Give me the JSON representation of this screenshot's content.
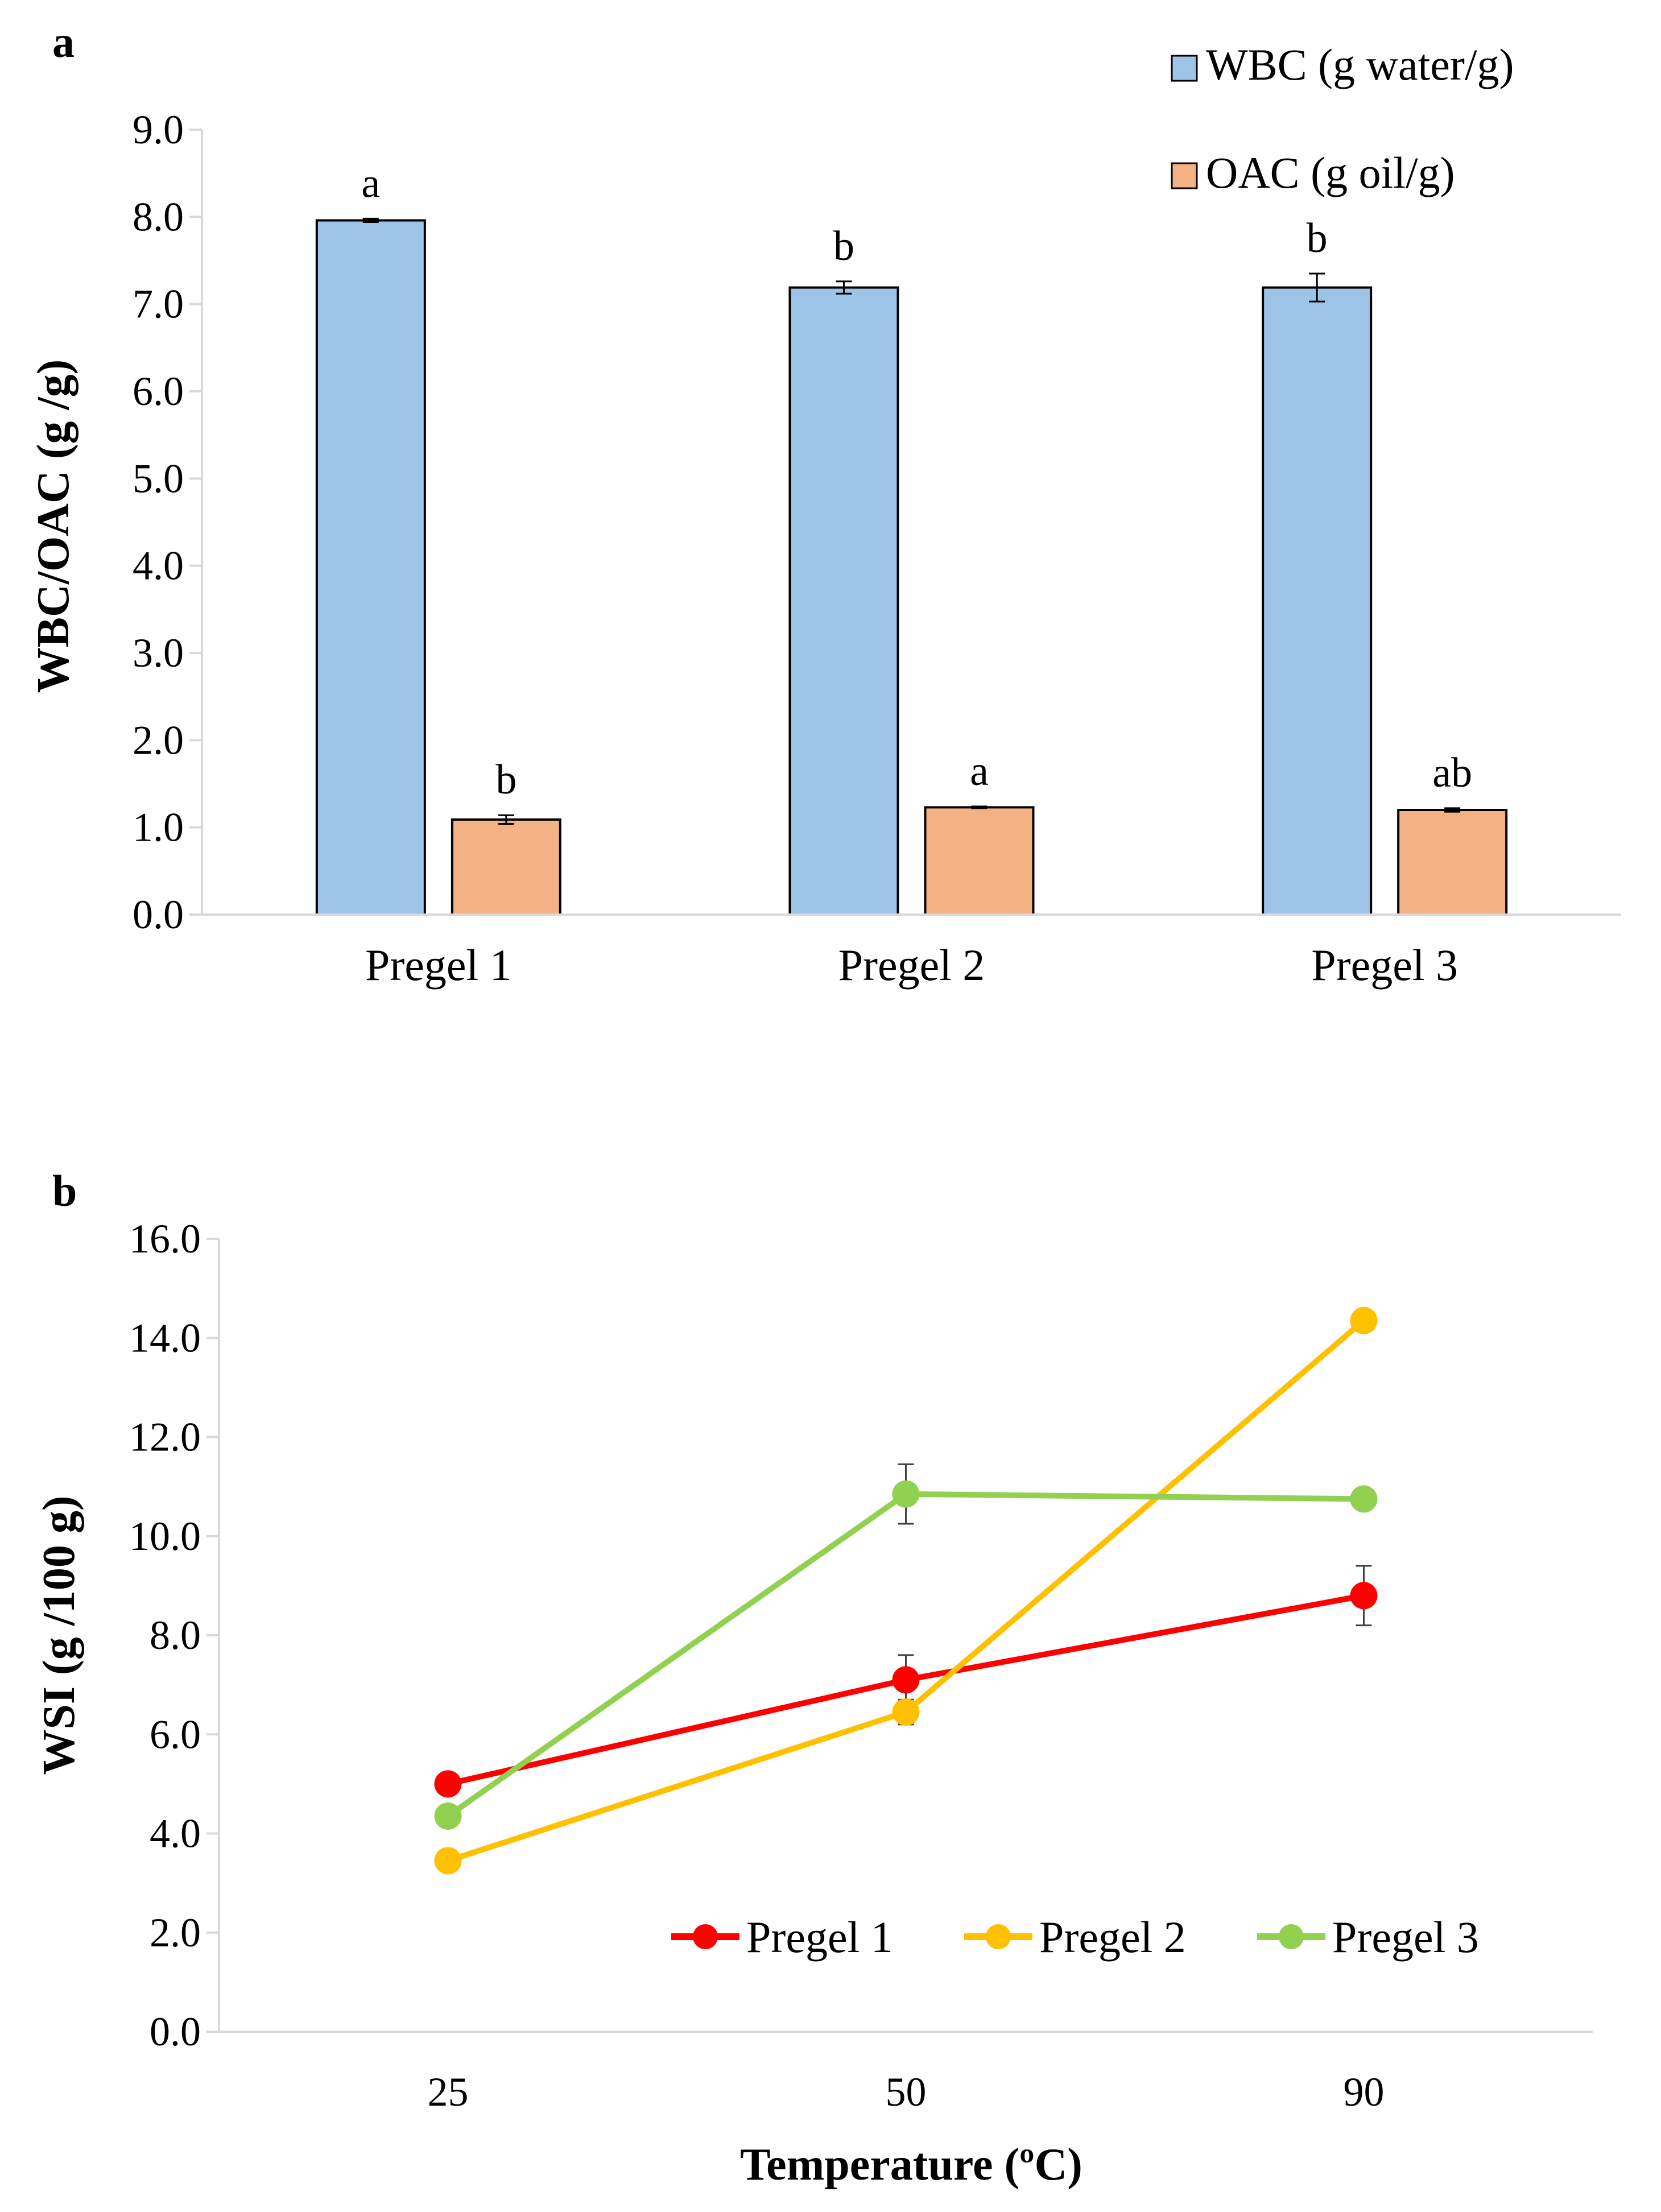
{
  "colors": {
    "wbc_fill": "#9dc3e6",
    "oac_fill": "#f4b183",
    "pregel1": "#ff0000",
    "pregel2": "#ffc000",
    "pregel3": "#92d050",
    "axis": "#d9d9d9",
    "errorbar": "#000000"
  },
  "chart_data": [
    {
      "panel": "a",
      "type": "bar",
      "ylabel": "WBC/OAC (g /g)",
      "xlabel": "",
      "ylim": [
        0,
        9
      ],
      "yticks": [
        "0.0",
        "1.0",
        "2.0",
        "3.0",
        "4.0",
        "5.0",
        "6.0",
        "7.0",
        "8.0",
        "9.0"
      ],
      "categories": [
        "Pregel 1",
        "Pregel 2",
        "Pregel 3"
      ],
      "series": [
        {
          "name": "WBC (g water/g)",
          "values": [
            7.96,
            7.19,
            7.19
          ],
          "errors": [
            0.02,
            0.07,
            0.16
          ],
          "letters": [
            "a",
            "b",
            "b"
          ]
        },
        {
          "name": "OAC (g oil/g)",
          "values": [
            1.09,
            1.23,
            1.2
          ],
          "errors": [
            0.05,
            0.01,
            0.02
          ],
          "letters": [
            "b",
            "a",
            "ab"
          ]
        }
      ],
      "legend": "top-right"
    },
    {
      "panel": "b",
      "type": "line",
      "ylabel": "WSI (g /100 g)",
      "xlabel": "Temperature (ºC)",
      "ylim": [
        0,
        16
      ],
      "yticks": [
        "0.0",
        "2.0",
        "4.0",
        "6.0",
        "8.0",
        "10.0",
        "12.0",
        "14.0",
        "16.0"
      ],
      "x": [
        "25",
        "50",
        "90"
      ],
      "series": [
        {
          "name": "Pregel 1",
          "values": [
            5.0,
            7.1,
            8.8
          ],
          "errors": [
            0.15,
            0.5,
            0.6
          ]
        },
        {
          "name": "Pregel 2",
          "values": [
            3.45,
            6.45,
            14.35
          ],
          "errors": [
            0.1,
            0.25,
            0.1
          ]
        },
        {
          "name": "Pregel 3",
          "values": [
            4.35,
            10.85,
            10.75
          ],
          "errors": [
            0.1,
            0.6,
            0.1
          ]
        }
      ],
      "legend": "bottom-right"
    }
  ]
}
